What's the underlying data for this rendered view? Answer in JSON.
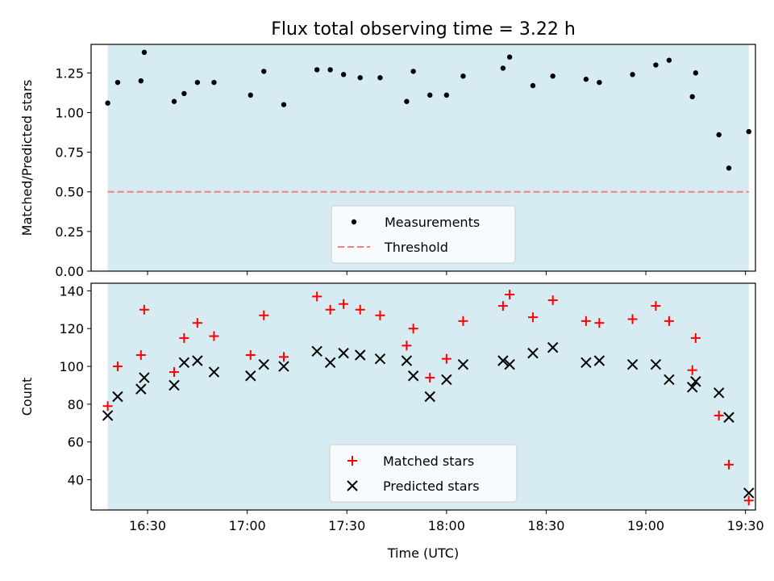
{
  "figure": {
    "title": "Flux total observing time = 3.22 h"
  },
  "colors": {
    "band": "#add8e6",
    "threshold": "#f08080",
    "matched": "#ff0000",
    "predicted": "#000000",
    "measurement": "#000000"
  },
  "chart_data": [
    {
      "type": "scatter",
      "title": "Flux total observing time = 3.22 h",
      "xlabel": "",
      "ylabel": "Matched/Predicted stars",
      "xlim": [
        "16:13",
        "19:33"
      ],
      "ylim": [
        0,
        1.43
      ],
      "x_ticks": [
        "16:30",
        "17:00",
        "17:30",
        "18:00",
        "18:30",
        "19:00",
        "19:30"
      ],
      "x_tick_labels_visible": false,
      "y_ticks": [
        "0.00",
        "0.25",
        "0.50",
        "0.75",
        "1.00",
        "1.25"
      ],
      "observing_window": [
        "16:18",
        "19:31"
      ],
      "threshold": 0.5,
      "legend": {
        "placement": "lower center",
        "entries": [
          "Measurements",
          "Threshold"
        ]
      },
      "series": [
        {
          "name": "Measurements",
          "marker": "dot",
          "points": [
            [
              "16:18",
              1.06
            ],
            [
              "16:21",
              1.19
            ],
            [
              "16:28",
              1.2
            ],
            [
              "16:29",
              1.38
            ],
            [
              "16:38",
              1.07
            ],
            [
              "16:41",
              1.12
            ],
            [
              "16:45",
              1.19
            ],
            [
              "16:50",
              1.19
            ],
            [
              "17:01",
              1.11
            ],
            [
              "17:05",
              1.26
            ],
            [
              "17:11",
              1.05
            ],
            [
              "17:21",
              1.27
            ],
            [
              "17:25",
              1.27
            ],
            [
              "17:29",
              1.24
            ],
            [
              "17:34",
              1.22
            ],
            [
              "17:40",
              1.22
            ],
            [
              "17:48",
              1.07
            ],
            [
              "17:50",
              1.26
            ],
            [
              "17:55",
              1.11
            ],
            [
              "18:00",
              1.11
            ],
            [
              "18:05",
              1.23
            ],
            [
              "18:17",
              1.28
            ],
            [
              "18:19",
              1.35
            ],
            [
              "18:26",
              1.17
            ],
            [
              "18:32",
              1.23
            ],
            [
              "18:42",
              1.21
            ],
            [
              "18:46",
              1.19
            ],
            [
              "18:56",
              1.24
            ],
            [
              "19:03",
              1.3
            ],
            [
              "19:07",
              1.33
            ],
            [
              "19:14",
              1.1
            ],
            [
              "19:15",
              1.25
            ],
            [
              "19:22",
              0.86
            ],
            [
              "19:25",
              0.65
            ],
            [
              "19:31",
              0.88
            ]
          ]
        },
        {
          "name": "Threshold",
          "style": "dashed",
          "value": 0.5
        }
      ]
    },
    {
      "type": "scatter",
      "title": "",
      "xlabel": "Time (UTC)",
      "ylabel": "Count",
      "xlim": [
        "16:13",
        "19:33"
      ],
      "ylim": [
        24,
        144
      ],
      "x_ticks": [
        "16:30",
        "17:00",
        "17:30",
        "18:00",
        "18:30",
        "19:00",
        "19:30"
      ],
      "y_ticks": [
        "40",
        "60",
        "80",
        "100",
        "120",
        "140"
      ],
      "observing_window": [
        "16:18",
        "19:31"
      ],
      "legend": {
        "placement": "lower center",
        "entries": [
          "Matched stars",
          "Predicted stars"
        ]
      },
      "series": [
        {
          "name": "Matched stars",
          "marker": "plus",
          "points": [
            [
              "16:18",
              79
            ],
            [
              "16:21",
              100
            ],
            [
              "16:28",
              106
            ],
            [
              "16:29",
              130
            ],
            [
              "16:38",
              97
            ],
            [
              "16:41",
              115
            ],
            [
              "16:45",
              123
            ],
            [
              "16:50",
              116
            ],
            [
              "17:01",
              106
            ],
            [
              "17:05",
              127
            ],
            [
              "17:11",
              105
            ],
            [
              "17:21",
              137
            ],
            [
              "17:25",
              130
            ],
            [
              "17:29",
              133
            ],
            [
              "17:34",
              130
            ],
            [
              "17:40",
              127
            ],
            [
              "17:48",
              111
            ],
            [
              "17:50",
              120
            ],
            [
              "17:55",
              94
            ],
            [
              "18:00",
              104
            ],
            [
              "18:05",
              124
            ],
            [
              "18:17",
              132
            ],
            [
              "18:19",
              138
            ],
            [
              "18:26",
              126
            ],
            [
              "18:32",
              135
            ],
            [
              "18:42",
              124
            ],
            [
              "18:46",
              123
            ],
            [
              "18:56",
              125
            ],
            [
              "19:03",
              132
            ],
            [
              "19:07",
              124
            ],
            [
              "19:14",
              98
            ],
            [
              "19:15",
              115
            ],
            [
              "19:22",
              74
            ],
            [
              "19:25",
              48
            ],
            [
              "19:31",
              29
            ]
          ]
        },
        {
          "name": "Predicted stars",
          "marker": "x",
          "points": [
            [
              "16:18",
              74
            ],
            [
              "16:21",
              84
            ],
            [
              "16:28",
              88
            ],
            [
              "16:29",
              94
            ],
            [
              "16:38",
              90
            ],
            [
              "16:41",
              102
            ],
            [
              "16:45",
              103
            ],
            [
              "16:50",
              97
            ],
            [
              "17:01",
              95
            ],
            [
              "17:05",
              101
            ],
            [
              "17:11",
              100
            ],
            [
              "17:21",
              108
            ],
            [
              "17:25",
              102
            ],
            [
              "17:29",
              107
            ],
            [
              "17:34",
              106
            ],
            [
              "17:40",
              104
            ],
            [
              "17:48",
              103
            ],
            [
              "17:50",
              95
            ],
            [
              "17:55",
              84
            ],
            [
              "18:00",
              93
            ],
            [
              "18:05",
              101
            ],
            [
              "18:17",
              103
            ],
            [
              "18:19",
              101
            ],
            [
              "18:26",
              107
            ],
            [
              "18:32",
              110
            ],
            [
              "18:42",
              102
            ],
            [
              "18:46",
              103
            ],
            [
              "18:56",
              101
            ],
            [
              "19:03",
              101
            ],
            [
              "19:07",
              93
            ],
            [
              "19:14",
              89
            ],
            [
              "19:15",
              92
            ],
            [
              "19:22",
              86
            ],
            [
              "19:25",
              73
            ],
            [
              "19:31",
              33
            ]
          ]
        }
      ]
    }
  ]
}
